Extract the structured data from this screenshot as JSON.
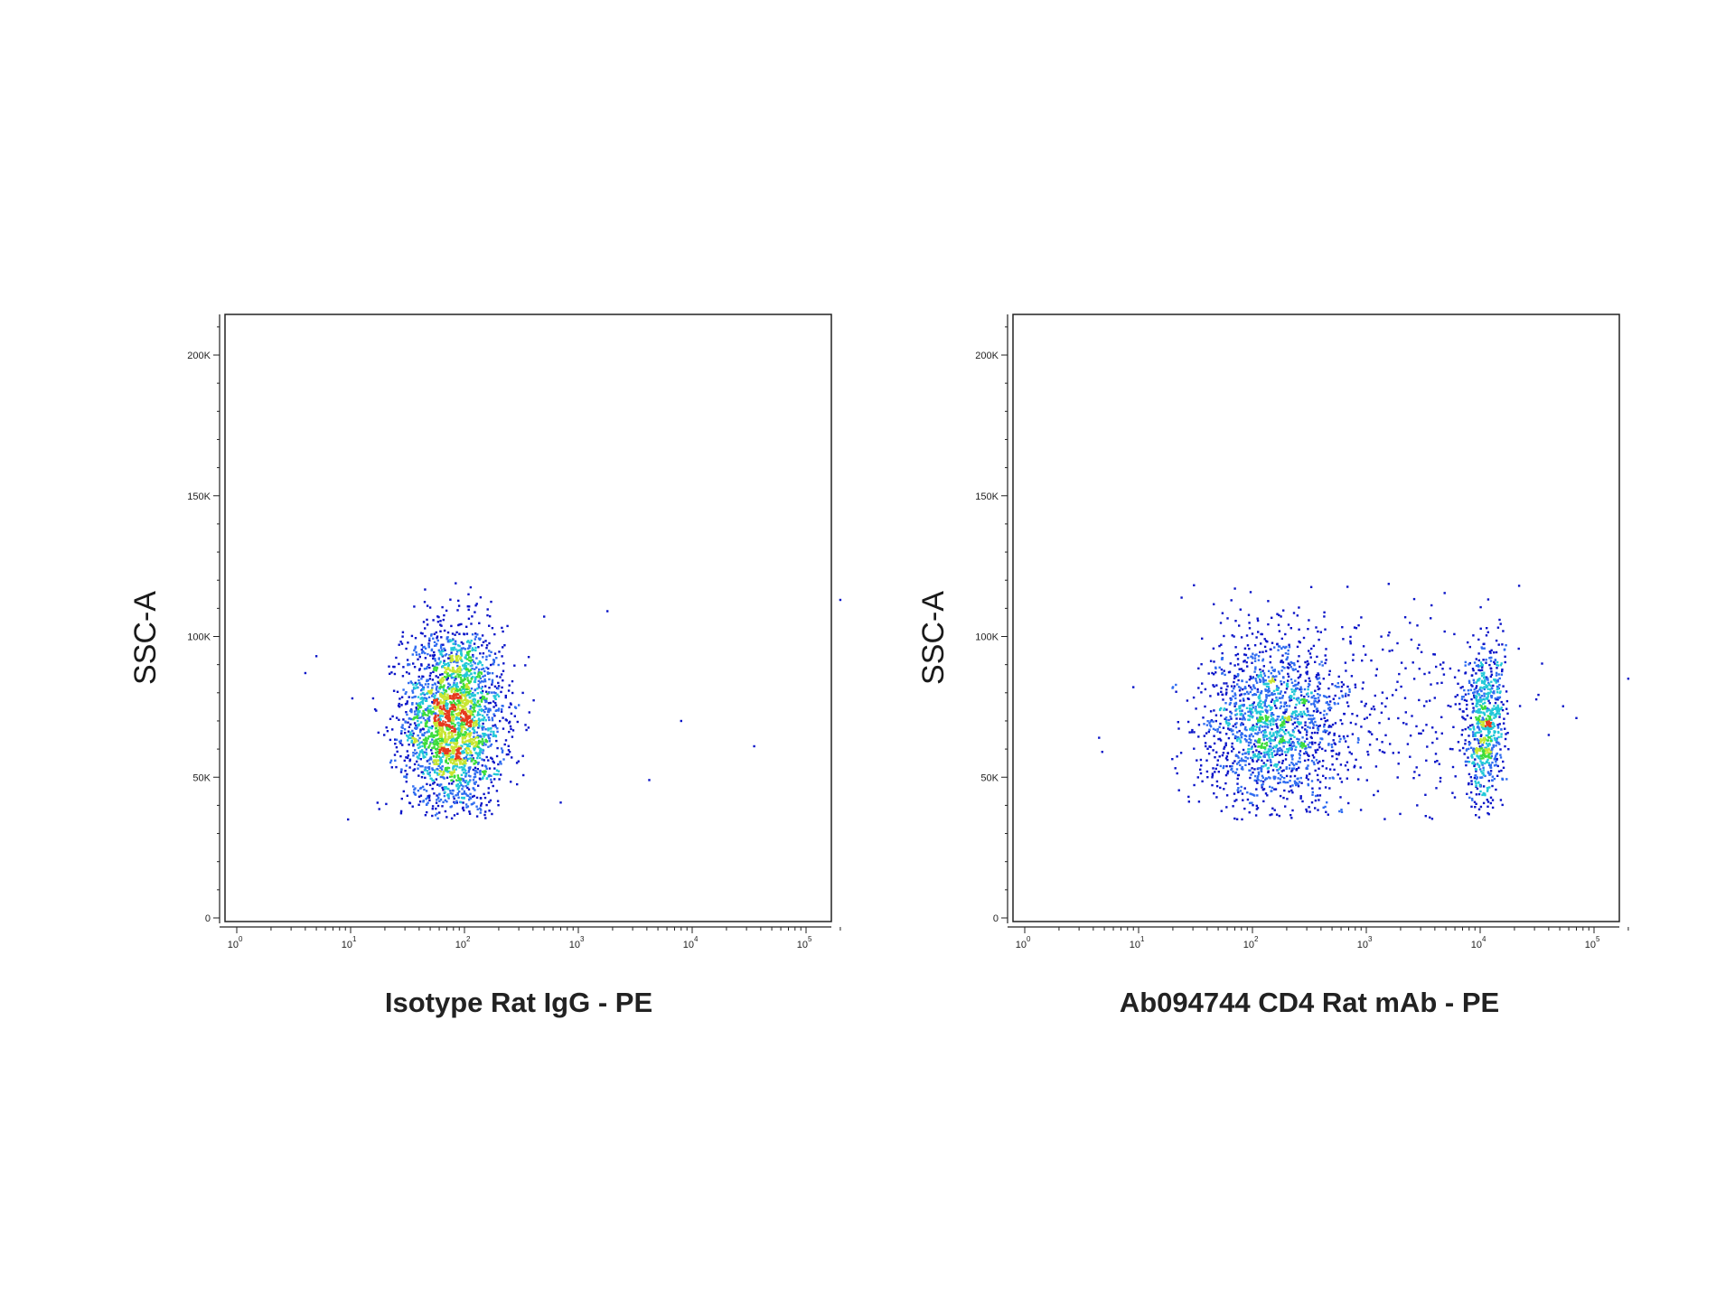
{
  "chart_data": [
    {
      "type": "scatter",
      "subtype": "flow-cytometry-density-dot-plot",
      "title": "",
      "xlabel": "Isotype Rat IgG - PE",
      "ylabel": "SSC-A",
      "x_scale": "log",
      "xlim": [
        1,
        200000
      ],
      "ylim": [
        0,
        215000
      ],
      "x_ticks": [
        {
          "base": "10",
          "exp": "0"
        },
        {
          "base": "10",
          "exp": "1"
        },
        {
          "base": "10",
          "exp": "2"
        },
        {
          "base": "10",
          "exp": "3"
        },
        {
          "base": "10",
          "exp": "4"
        },
        {
          "base": "10",
          "exp": "5"
        }
      ],
      "x_tick_values": [
        1,
        10,
        100,
        1000,
        10000,
        100000
      ],
      "y_ticks": [
        "0",
        "50K",
        "100K",
        "150K",
        "200K"
      ],
      "y_tick_values": [
        0,
        50000,
        100000,
        150000,
        200000
      ],
      "density_colors": [
        "#0a14c8",
        "#2f6cf0",
        "#22c8d8",
        "#3cdc3c",
        "#c8e632",
        "#e63a1e"
      ],
      "grid": false,
      "populations": [
        {
          "x_center": 80,
          "y_center": 70000,
          "x_spread_log10": 0.22,
          "y_spread": 17000,
          "weight": 1.0
        }
      ],
      "outliers": [
        {
          "x": 4,
          "y": 87000
        },
        {
          "x": 5,
          "y": 93000
        },
        {
          "x": 9.5,
          "y": 35000
        },
        {
          "x": 4200,
          "y": 49000
        },
        {
          "x": 8000,
          "y": 70000
        },
        {
          "x": 35000,
          "y": 61000
        },
        {
          "x": 200000,
          "y": 113000
        },
        {
          "x": 1800,
          "y": 109000
        },
        {
          "x": 700,
          "y": 41000
        }
      ]
    },
    {
      "type": "scatter",
      "subtype": "flow-cytometry-density-dot-plot",
      "title": "",
      "xlabel": "Ab094744 CD4 Rat mAb - PE",
      "ylabel": "SSC-A",
      "x_scale": "log",
      "xlim": [
        1,
        200000
      ],
      "ylim": [
        0,
        215000
      ],
      "x_ticks": [
        {
          "base": "10",
          "exp": "0"
        },
        {
          "base": "10",
          "exp": "1"
        },
        {
          "base": "10",
          "exp": "2"
        },
        {
          "base": "10",
          "exp": "3"
        },
        {
          "base": "10",
          "exp": "4"
        },
        {
          "base": "10",
          "exp": "5"
        }
      ],
      "x_tick_values": [
        1,
        10,
        100,
        1000,
        10000,
        100000
      ],
      "y_ticks": [
        "0",
        "50K",
        "100K",
        "150K",
        "200K"
      ],
      "y_tick_values": [
        0,
        50000,
        100000,
        150000,
        200000
      ],
      "density_colors": [
        "#0a14c8",
        "#2f6cf0",
        "#22c8d8",
        "#3cdc3c",
        "#c8e632",
        "#e63a1e"
      ],
      "grid": false,
      "populations": [
        {
          "x_center": 150,
          "y_center": 70000,
          "x_spread_log10": 0.32,
          "y_spread": 16000,
          "weight": 0.62
        },
        {
          "x_center": 11000,
          "y_center": 68000,
          "x_spread_log10": 0.09,
          "y_spread": 15000,
          "weight": 0.28
        },
        {
          "x_center": 1500,
          "y_center": 75000,
          "x_spread_log10": 0.55,
          "y_spread": 20000,
          "weight": 0.1
        }
      ],
      "outliers": [
        {
          "x": 4.5,
          "y": 64000
        },
        {
          "x": 4.8,
          "y": 59000
        },
        {
          "x": 9,
          "y": 82000
        },
        {
          "x": 200000,
          "y": 85000
        },
        {
          "x": 70000,
          "y": 71000
        },
        {
          "x": 40000,
          "y": 65000
        },
        {
          "x": 2800,
          "y": 40000
        },
        {
          "x": 22000,
          "y": 118000
        }
      ]
    }
  ]
}
